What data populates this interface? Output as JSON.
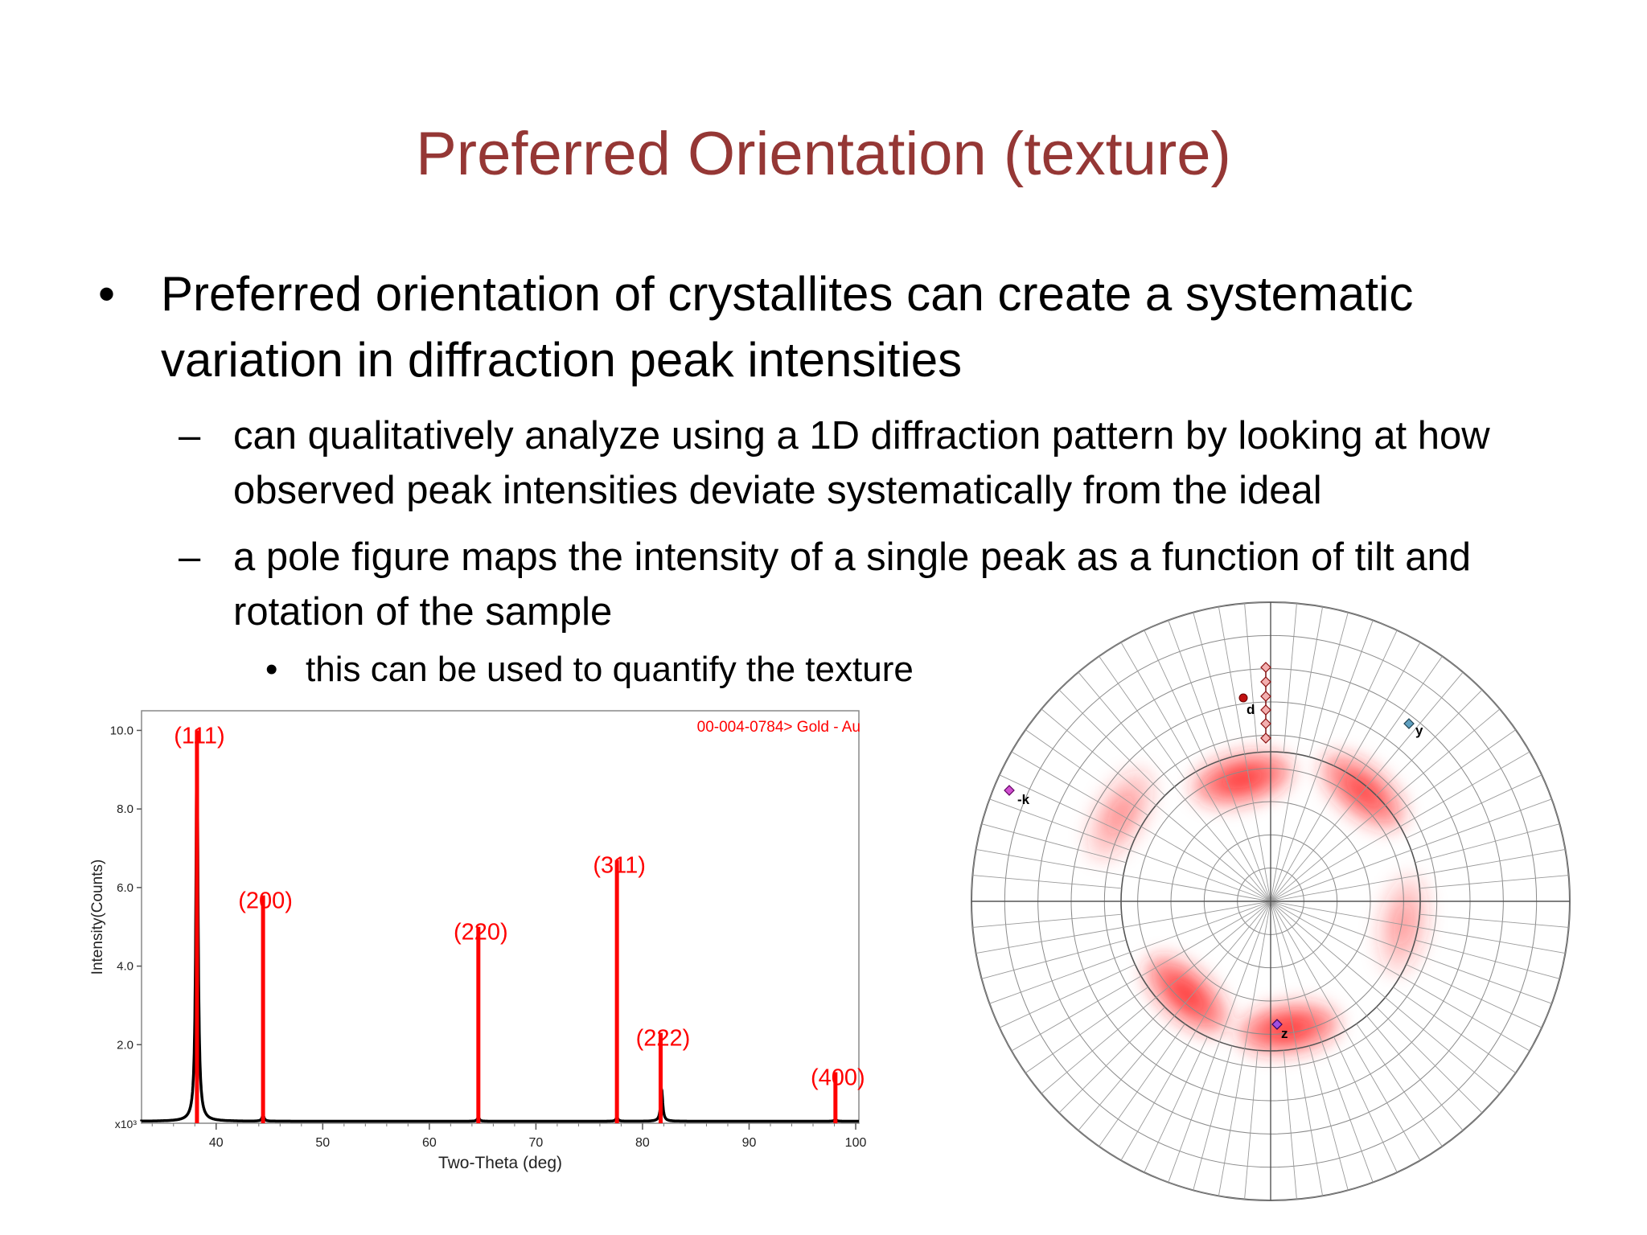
{
  "slide": {
    "title": "Preferred Orientation (texture)",
    "bullet1": "Preferred orientation of crystallites can create a systematic variation in diffraction peak intensities",
    "bullet1_mark": "•",
    "sub_mark": "–",
    "sub1": "can qualitatively analyze using a 1D diffraction pattern by looking at how observed peak intensities deviate systematically from the ideal",
    "sub2": "a pole figure maps the intensity of a single peak as a function of tilt and rotation of the sample",
    "sub2a_mark": "•",
    "sub2a": "this can be used to quantify the texture"
  },
  "colors": {
    "title": "#953735",
    "reference_peaks": "#ff0000",
    "pattern": "#000000",
    "pole_intensity": "#ff2020"
  },
  "chart_data": [
    {
      "type": "bar",
      "title": "",
      "xlabel": "Two-Theta (deg)",
      "ylabel": "Intensity(Counts)",
      "y_multiplier_label": "x10³",
      "xlim": [
        33,
        100.3
      ],
      "ylim": [
        0,
        10.5
      ],
      "xticks": [
        40,
        50,
        60,
        70,
        80,
        90,
        100
      ],
      "yticks": [
        "2.0",
        "4.0",
        "6.0",
        "8.0",
        "10.0"
      ],
      "legend_text": "00-004-0784> Gold - Au",
      "reference_peaks": [
        {
          "label": "(111)",
          "x": 38.2,
          "y": 10.0
        },
        {
          "label": "(200)",
          "x": 44.4,
          "y": 5.8
        },
        {
          "label": "(220)",
          "x": 64.6,
          "y": 5.0
        },
        {
          "label": "(311)",
          "x": 77.6,
          "y": 6.7
        },
        {
          "label": "(222)",
          "x": 81.7,
          "y": 2.3
        },
        {
          "label": "(400)",
          "x": 98.1,
          "y": 1.3
        }
      ],
      "observed_peaks": [
        {
          "x": 38.2,
          "y": 9.9
        },
        {
          "x": 44.4,
          "y": 0.15
        },
        {
          "x": 64.6,
          "y": 0.1
        },
        {
          "x": 77.6,
          "y": 0.1
        },
        {
          "x": 81.8,
          "y": 0.8
        },
        {
          "x": 98.1,
          "y": 0.05
        }
      ]
    },
    {
      "type": "heatmap",
      "subtype": "pole-figure",
      "labels": [
        "d",
        "y",
        "-k",
        "z"
      ],
      "intensity_spots": [
        {
          "tilt_frac": 0.42,
          "azimuth_deg": 103,
          "strength": 1.0
        },
        {
          "tilt_frac": 0.48,
          "azimuth_deg": 50,
          "strength": 0.9
        },
        {
          "tilt_frac": 0.58,
          "azimuth_deg": 150,
          "strength": 0.45
        },
        {
          "tilt_frac": 0.45,
          "azimuth_deg": 350,
          "strength": 0.4
        },
        {
          "tilt_frac": 0.42,
          "azimuth_deg": 228,
          "strength": 1.0
        },
        {
          "tilt_frac": 0.43,
          "azimuth_deg": 278,
          "strength": 1.0
        }
      ]
    }
  ]
}
